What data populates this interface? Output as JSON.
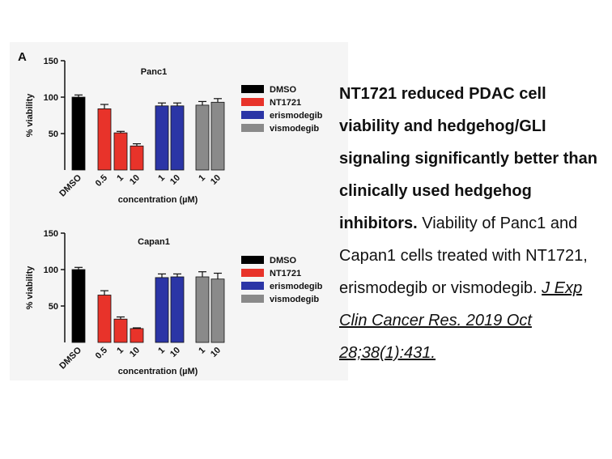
{
  "figure_letter": "A",
  "chart_data": [
    {
      "type": "bar",
      "title": "Panc1",
      "ylabel": "% viability",
      "xlabel": "concentration (µM)",
      "ylim": [
        0,
        150
      ],
      "yticks": [
        50,
        100,
        150
      ],
      "categories": [
        "DMSO",
        "0.5",
        "1",
        "10",
        "1",
        "10",
        "1",
        "10"
      ],
      "groups": [
        "DMSO",
        "NT1721",
        "NT1721",
        "NT1721",
        "erismodegib",
        "erismodegib",
        "vismodegib",
        "vismodegib"
      ],
      "values": [
        100,
        84,
        51,
        33,
        88,
        88,
        89,
        93
      ],
      "errors": [
        3,
        6,
        2,
        3,
        4,
        4,
        5,
        5
      ],
      "legend": [
        {
          "label": "DMSO",
          "color": "#000000"
        },
        {
          "label": "NT1721",
          "color": "#e8332a"
        },
        {
          "label": "erismodegib",
          "color": "#2b35a6"
        },
        {
          "label": "vismodegib",
          "color": "#8a8a8a"
        }
      ],
      "legend_position": "right"
    },
    {
      "type": "bar",
      "title": "Capan1",
      "ylabel": "% viability",
      "xlabel": "concentration (µM)",
      "ylim": [
        0,
        150
      ],
      "yticks": [
        50,
        100,
        150
      ],
      "categories": [
        "DMSO",
        "0.5",
        "1",
        "10",
        "1",
        "10",
        "1",
        "10"
      ],
      "groups": [
        "DMSO",
        "NT1721",
        "NT1721",
        "NT1721",
        "erismodegib",
        "erismodegib",
        "vismodegib",
        "vismodegib"
      ],
      "values": [
        100,
        65,
        32,
        19,
        89,
        90,
        90,
        87
      ],
      "errors": [
        3,
        6,
        3,
        1,
        5,
        4,
        7,
        8
      ],
      "legend": [
        {
          "label": "DMSO",
          "color": "#000000"
        },
        {
          "label": "NT1721",
          "color": "#e8332a"
        },
        {
          "label": "erismodegib",
          "color": "#2b35a6"
        },
        {
          "label": "vismodegib",
          "color": "#8a8a8a"
        }
      ],
      "legend_position": "right"
    }
  ],
  "caption": {
    "bold_text": "NT1721 reduced PDAC cell viability and hedgehog/GLI signaling significantly better than clinically used hedgehog inhibitors.",
    "body_text": "Viability of Panc1 and Capan1 cells treated with NT1721, erismodegib or vismodegib.",
    "citation": "J Exp Clin Cancer Res. 2019 Oct 28;38(1):431."
  }
}
